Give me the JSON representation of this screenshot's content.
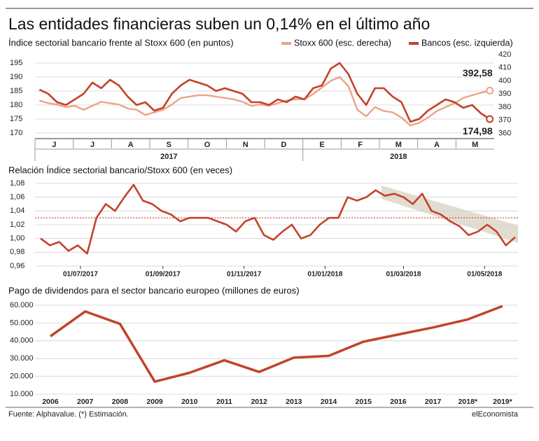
{
  "title": "Las entidades financieras suben un 0,14% en el último año",
  "source": "Fuente: Alphavalue. (*) Estimación.",
  "credit": "elEconomista",
  "chart_data": [
    {
      "type": "dual_line",
      "title": "Índice sectorial bancario frente al Stoxx 600 (en puntos)",
      "month_groups": [
        {
          "year": "2017",
          "months": [
            "J",
            "J",
            "A",
            "S",
            "O",
            "N",
            "D"
          ]
        },
        {
          "year": "2018",
          "months": [
            "E",
            "F",
            "M",
            "A",
            "M"
          ]
        }
      ],
      "ylim": [
        168,
        198
      ],
      "yticks": [
        170,
        175,
        180,
        185,
        190,
        195
      ],
      "y2lim": [
        356,
        420
      ],
      "y2ticks": [
        360,
        370,
        380,
        390,
        400,
        410,
        420
      ],
      "grid": true,
      "series": [
        {
          "name": "Stoxx 600 (esc. derecha)",
          "color": "#eca386",
          "axis": "y2",
          "end_label": "392,58",
          "values": [
            385,
            383,
            382,
            380,
            381,
            378,
            381,
            384,
            383,
            382,
            379,
            378,
            374,
            376,
            378,
            382,
            387,
            388,
            389,
            389,
            388,
            387,
            386,
            384,
            381,
            382,
            381,
            383,
            385,
            386,
            386,
            390,
            395,
            400,
            403,
            396,
            378,
            373,
            380,
            377,
            376,
            372,
            366,
            368,
            372,
            377,
            380,
            383,
            387,
            389,
            391,
            392.58
          ]
        },
        {
          "name": "Bancos (esc. izquierda)",
          "color": "#c2432b",
          "end_label": "174,98",
          "values": [
            185.5,
            184,
            181,
            180,
            182,
            184,
            188,
            186,
            189,
            187,
            183,
            180,
            181,
            178,
            179,
            184,
            187,
            189,
            188,
            187,
            185,
            186,
            185,
            184,
            181,
            181,
            180,
            182,
            181,
            183,
            182,
            186,
            187,
            193,
            195,
            191,
            184,
            180,
            186,
            186,
            183,
            181,
            174,
            175,
            178,
            180,
            182,
            181,
            179,
            180,
            177,
            174.98
          ]
        }
      ]
    },
    {
      "type": "line",
      "title": "Relación Índice sectorial bancario/Stoxx 600 (en veces)",
      "color": "#c2432b",
      "x": [
        "2017-06-01",
        "2017-06-08",
        "2017-06-15",
        "2017-06-22",
        "2017-06-29",
        "2017-07-06",
        "2017-07-13",
        "2017-07-20",
        "2017-07-27",
        "2017-08-03",
        "2017-08-10",
        "2017-08-17",
        "2017-08-24",
        "2017-08-31",
        "2017-09-07",
        "2017-09-14",
        "2017-09-21",
        "2017-09-28",
        "2017-10-05",
        "2017-10-12",
        "2017-10-19",
        "2017-10-26",
        "2017-11-02",
        "2017-11-09",
        "2017-11-16",
        "2017-11-23",
        "2017-11-30",
        "2017-12-07",
        "2017-12-14",
        "2017-12-21",
        "2017-12-28",
        "2018-01-04",
        "2018-01-11",
        "2018-01-18",
        "2018-01-25",
        "2018-02-01",
        "2018-02-08",
        "2018-02-15",
        "2018-02-22",
        "2018-03-01",
        "2018-03-08",
        "2018-03-15",
        "2018-03-22",
        "2018-03-29",
        "2018-04-05",
        "2018-04-12",
        "2018-04-19",
        "2018-04-26",
        "2018-05-03",
        "2018-05-10",
        "2018-05-17",
        "2018-05-24"
      ],
      "values": [
        1.0,
        0.99,
        0.995,
        0.982,
        0.99,
        0.978,
        1.03,
        1.05,
        1.04,
        1.06,
        1.078,
        1.055,
        1.05,
        1.04,
        1.035,
        1.025,
        1.03,
        1.03,
        1.03,
        1.025,
        1.02,
        1.01,
        1.025,
        1.03,
        1.005,
        0.998,
        1.01,
        1.02,
        1.0,
        1.005,
        1.02,
        1.03,
        1.03,
        1.06,
        1.055,
        1.06,
        1.07,
        1.062,
        1.065,
        1.06,
        1.05,
        1.065,
        1.04,
        1.035,
        1.025,
        1.018,
        1.005,
        1.01,
        1.02,
        1.01,
        0.99,
        1.002
      ],
      "xlim": [
        "2017-06-01",
        "2018-05-24"
      ],
      "xticks": [
        {
          "value": "2017-07-01",
          "label": "01/07/2017"
        },
        {
          "value": "2017-09-01",
          "label": "01/09/2017"
        },
        {
          "value": "2017-11-01",
          "label": "01/11/2017"
        },
        {
          "value": "2018-01-01",
          "label": "01/01/2018"
        },
        {
          "value": "2018-03-01",
          "label": "01/03/2018"
        },
        {
          "value": "2018-05-01",
          "label": "01/05/2018"
        }
      ],
      "ylim": [
        0.96,
        1.08
      ],
      "yticks": [
        {
          "value": 0.96,
          "label": "0,96"
        },
        {
          "value": 0.98,
          "label": "0,98"
        },
        {
          "value": 1.0,
          "label": "1,00"
        },
        {
          "value": 1.02,
          "label": "1,02"
        },
        {
          "value": 1.04,
          "label": "1,04"
        },
        {
          "value": 1.06,
          "label": "1,06"
        },
        {
          "value": 1.08,
          "label": "1,08"
        }
      ],
      "ref_line": 1.03,
      "grid": true
    },
    {
      "type": "line",
      "title": "Pago de dividendos para el sector bancario europeo (millones de euros)",
      "color": "#c2432b",
      "categories": [
        "2006",
        "2007",
        "2008",
        "2009",
        "2010",
        "2011",
        "2012",
        "2013",
        "2014",
        "2015",
        "2016",
        "2017",
        "2018*",
        "2019*"
      ],
      "values": [
        42500,
        56500,
        49500,
        17000,
        22000,
        29000,
        22500,
        30500,
        31500,
        39500,
        43500,
        47500,
        52000,
        59500
      ],
      "ylim": [
        10000,
        60000
      ],
      "yticks": [
        {
          "value": 10000,
          "label": "10.000"
        },
        {
          "value": 20000,
          "label": "20.000"
        },
        {
          "value": 30000,
          "label": "30.000"
        },
        {
          "value": 40000,
          "label": "40.000"
        },
        {
          "value": 50000,
          "label": "50.000"
        },
        {
          "value": 60000,
          "label": "60.000"
        }
      ],
      "grid": true
    }
  ]
}
